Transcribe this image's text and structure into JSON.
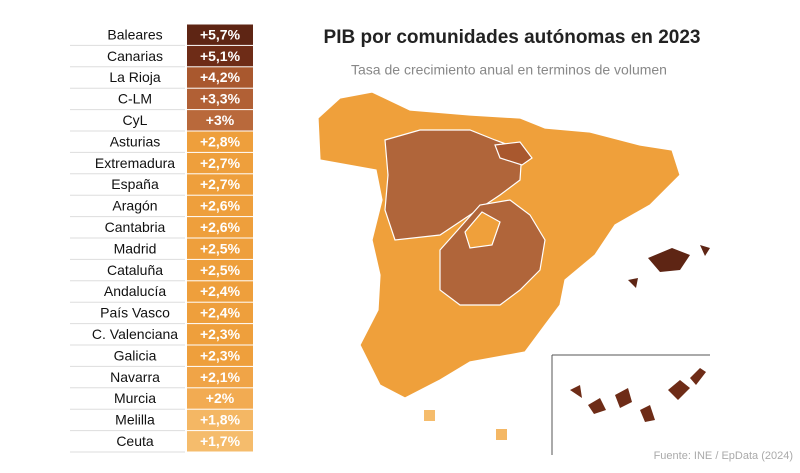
{
  "chart_data": {
    "type": "ranked-table",
    "title": "PIB por comunidades autónomas en 2023",
    "subtitle": "Tasa de crecimiento anual en terminos de volumen",
    "source": "Fuente: INE / EpData (2024)",
    "categories": [
      "Baleares",
      "Canarias",
      "La Rioja",
      "C-LM",
      "CyL",
      "Asturias",
      "Extremadura",
      "España",
      "Aragón",
      "Cantabria",
      "Madrid",
      "Cataluña",
      "Andalucía",
      "País Vasco",
      "C. Valenciana",
      "Galicia",
      "Navarra",
      "Murcia",
      "Melilla",
      "Ceuta"
    ],
    "values": [
      5.7,
      5.1,
      4.2,
      3.3,
      3,
      2.8,
      2.7,
      2.7,
      2.6,
      2.6,
      2.5,
      2.5,
      2.4,
      2.4,
      2.3,
      2.3,
      2.1,
      2,
      1.8,
      1.7
    ],
    "value_labels": [
      "+5,7%",
      "+5,1%",
      "+4,2%",
      "+3,3%",
      "+3%",
      "+2,8%",
      "+2,7%",
      "+2,7%",
      "+2,6%",
      "+2,6%",
      "+2,5%",
      "+2,5%",
      "+2,4%",
      "+2,4%",
      "+2,3%",
      "+2,3%",
      "+2,1%",
      "+2%",
      "+1,8%",
      "+1,7%"
    ],
    "colors": [
      "#5e2514",
      "#6e2c17",
      "#a9582e",
      "#b16035",
      "#b9693b",
      "#ee9f3c",
      "#ee9f3c",
      "#ee9f3c",
      "#ee9f3c",
      "#ee9f3c",
      "#ee9f3c",
      "#ee9f3c",
      "#ee9f3c",
      "#ee9f3c",
      "#ee9f3c",
      "#ee9f3c",
      "#f0a447",
      "#f2ab52",
      "#f4b764",
      "#f5bc6c"
    ]
  }
}
